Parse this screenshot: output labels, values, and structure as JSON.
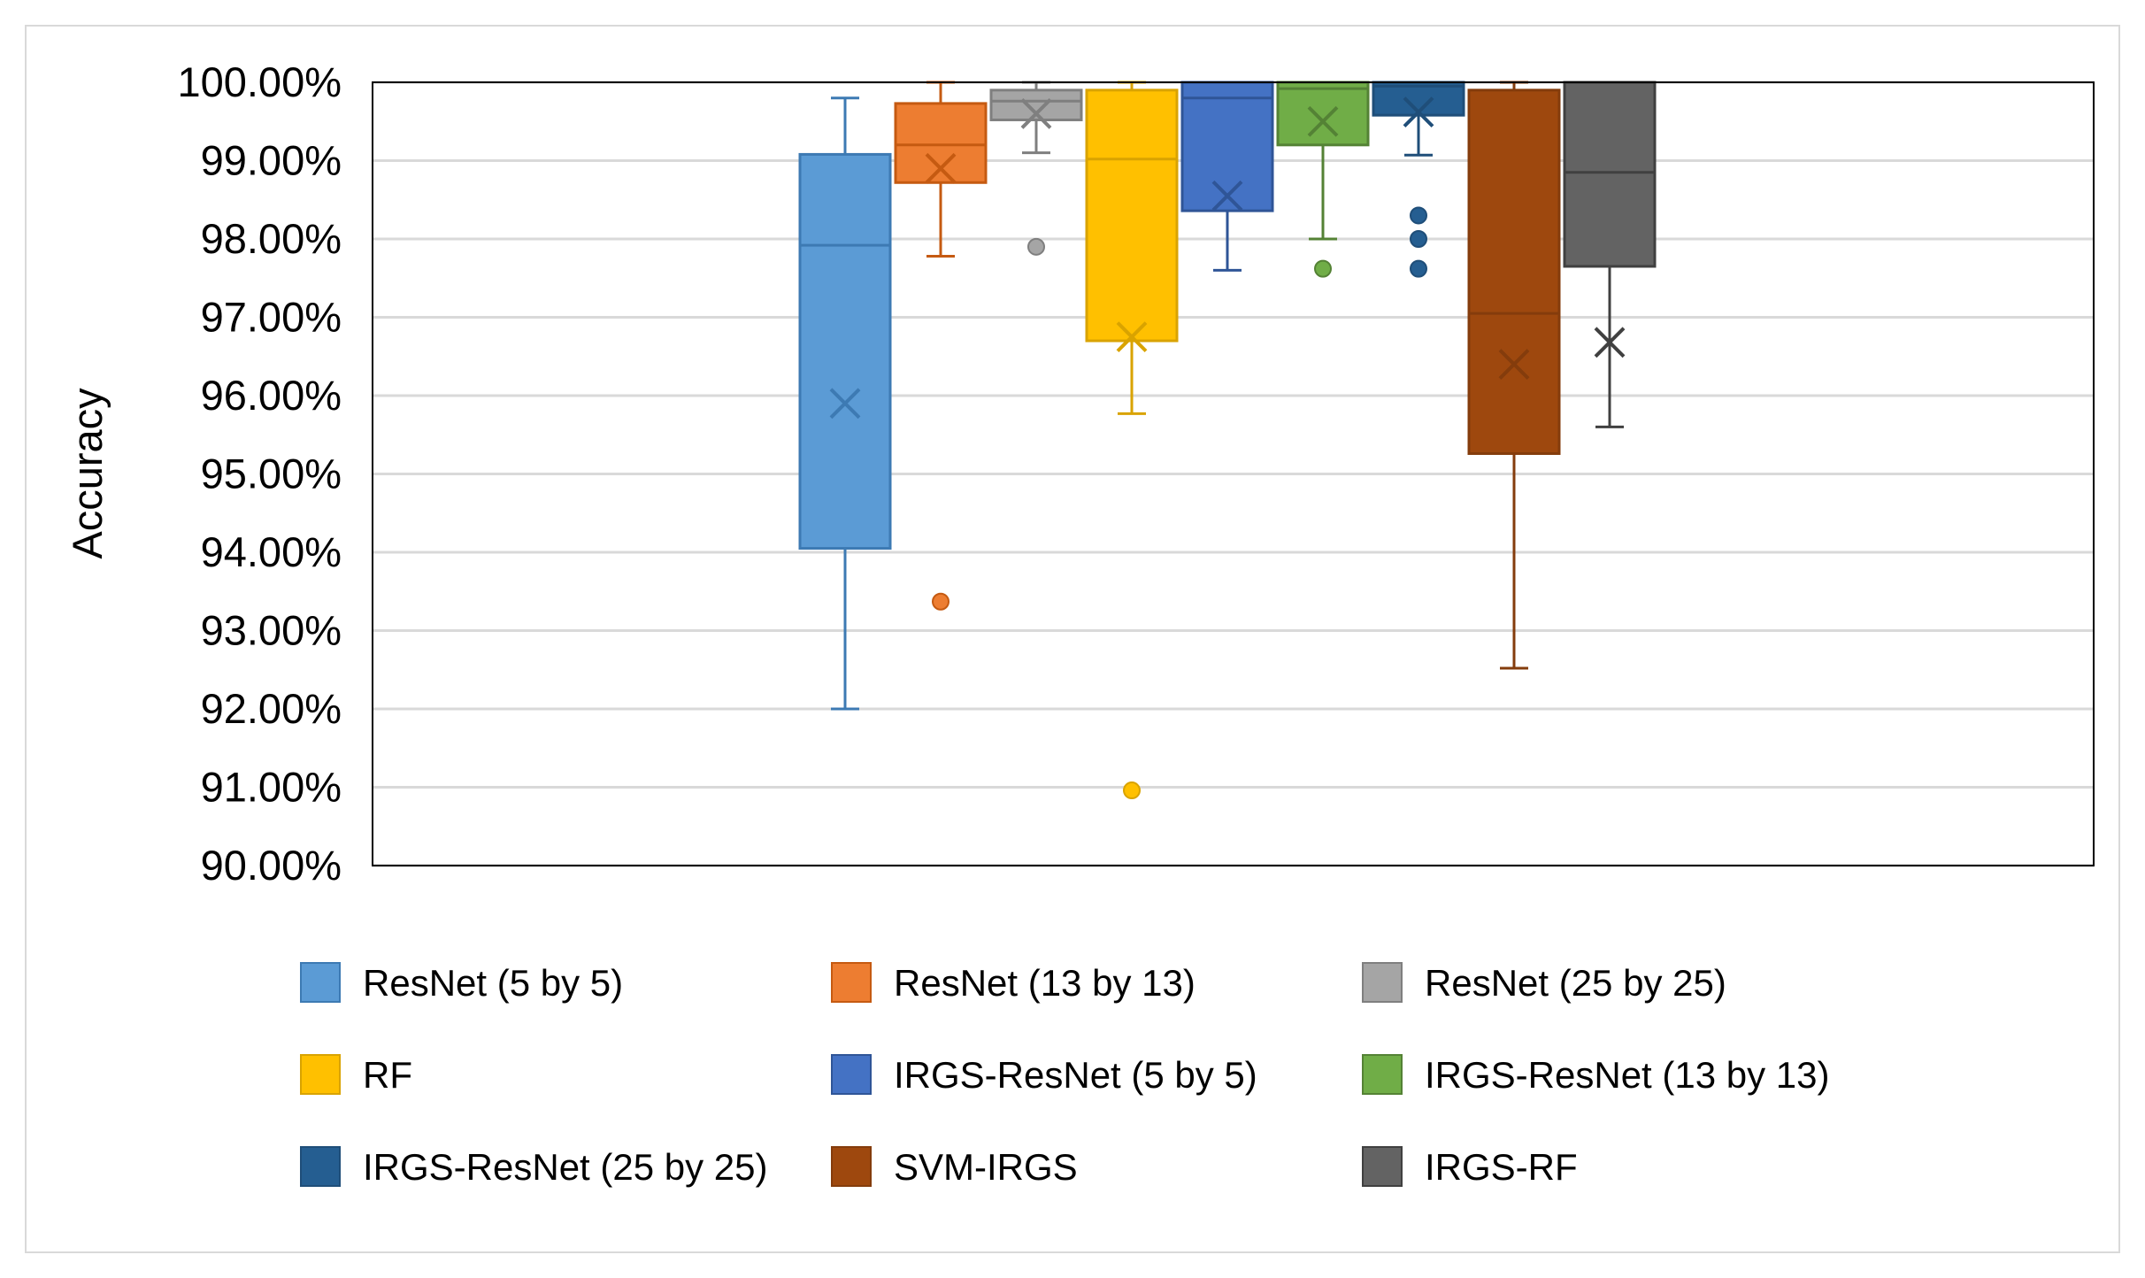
{
  "chart_data": {
    "type": "box",
    "title": "",
    "xlabel": "",
    "ylabel": "Accuracy",
    "ylim": [
      90,
      100
    ],
    "ytick_step": 1,
    "ytick_labels": [
      "90.00%",
      "91.00%",
      "92.00%",
      "93.00%",
      "94.00%",
      "95.00%",
      "96.00%",
      "97.00%",
      "98.00%",
      "99.00%",
      "100.00%"
    ],
    "grid": true,
    "legend_position": "bottom",
    "series": [
      {
        "name": "ResNet (5 by 5)",
        "color": "#5b9bd5",
        "stroke": "#3d7ab3",
        "whisker_low": 92.0,
        "q1": 94.05,
        "median": 97.92,
        "q3": 99.08,
        "whisker_high": 99.8,
        "mean": 95.9,
        "outliers": []
      },
      {
        "name": "ResNet (13 by 13)",
        "color": "#ed7d31",
        "stroke": "#c55a11",
        "whisker_low": 97.78,
        "q1": 98.72,
        "median": 99.2,
        "q3": 99.73,
        "whisker_high": 100.0,
        "mean": 98.9,
        "outliers": [
          93.37
        ]
      },
      {
        "name": "ResNet (25 by 25)",
        "color": "#a5a5a5",
        "stroke": "#7f7f7f",
        "whisker_low": 99.1,
        "q1": 99.52,
        "median": 99.76,
        "q3": 99.9,
        "whisker_high": 100.0,
        "mean": 99.6,
        "outliers": [
          97.9
        ]
      },
      {
        "name": "RF",
        "color": "#ffc000",
        "stroke": "#d9a300",
        "whisker_low": 95.77,
        "q1": 96.7,
        "median": 99.02,
        "q3": 99.9,
        "whisker_high": 100.0,
        "mean": 96.75,
        "outliers": [
          90.96
        ]
      },
      {
        "name": "IRGS-ResNet (5 by 5)",
        "color": "#4472c4",
        "stroke": "#2f5597",
        "whisker_low": 97.6,
        "q1": 98.36,
        "median": 99.8,
        "q3": 100.0,
        "whisker_high": 100.0,
        "mean": 98.55,
        "outliers": []
      },
      {
        "name": "IRGS-ResNet (13 by 13)",
        "color": "#70ad47",
        "stroke": "#548235",
        "whisker_low": 98.0,
        "q1": 99.2,
        "median": 99.92,
        "q3": 100.0,
        "whisker_high": 100.0,
        "mean": 99.5,
        "outliers": [
          97.62
        ]
      },
      {
        "name": "IRGS-ResNet (25 by 25)",
        "color": "#255e91",
        "stroke": "#1f4e79",
        "whisker_low": 99.07,
        "q1": 99.58,
        "median": 99.95,
        "q3": 100.0,
        "whisker_high": 100.0,
        "mean": 99.62,
        "outliers": [
          98.3,
          98.0,
          97.62
        ]
      },
      {
        "name": "SVM-IRGS",
        "color": "#9e480e",
        "stroke": "#843c0c",
        "whisker_low": 92.52,
        "q1": 95.26,
        "median": 97.05,
        "q3": 99.9,
        "whisker_high": 100.0,
        "mean": 96.4,
        "outliers": []
      },
      {
        "name": "IRGS-RF",
        "color": "#636363",
        "stroke": "#404040",
        "whisker_low": 95.6,
        "q1": 97.65,
        "median": 98.85,
        "q3": 100.0,
        "whisker_high": 100.0,
        "mean": 96.68,
        "outliers": []
      }
    ]
  }
}
